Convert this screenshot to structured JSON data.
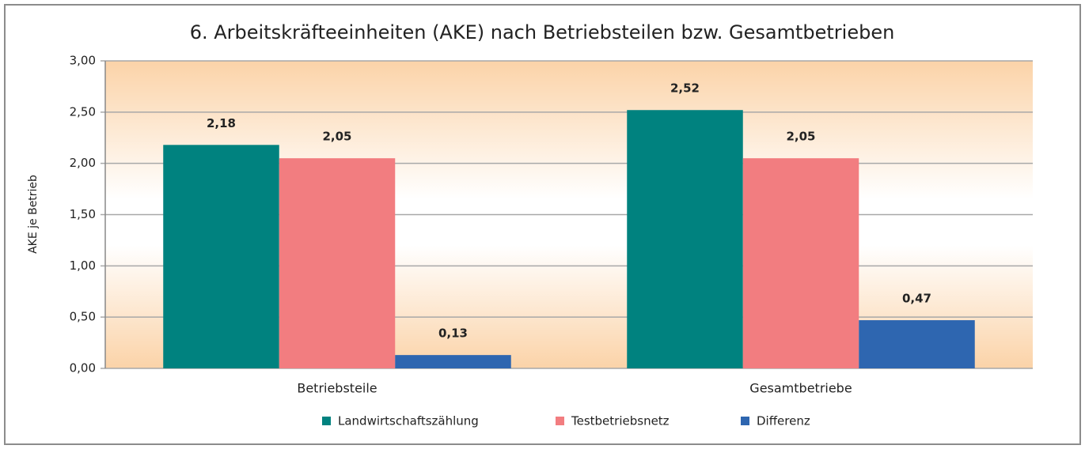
{
  "chart_data": {
    "type": "bar",
    "title": "6. Arbeitskräfteeinheiten (AKE) nach Betriebsteilen bzw. Gesamtbetrieben",
    "y_label": "AKE je Betrieb",
    "categories": [
      "Betriebsteile",
      "Gesamtbetriebe"
    ],
    "series": [
      {
        "name": "Landwirtschaftszählung",
        "color": "#00827f",
        "values": [
          2.18,
          2.52
        ],
        "value_labels": [
          "2,18",
          "2,52"
        ]
      },
      {
        "name": "Testbetriebsnetz",
        "color": "#f27d80",
        "values": [
          2.05,
          2.05
        ],
        "value_labels": [
          "2,05",
          "2,05"
        ]
      },
      {
        "name": "Differenz",
        "color": "#2e66b0",
        "values": [
          0.13,
          0.47
        ],
        "value_labels": [
          "0,13",
          "0,47"
        ]
      }
    ],
    "ylim": [
      0,
      3
    ],
    "yticks": [
      {
        "value": 0,
        "label": "0,00"
      },
      {
        "value": 0.5,
        "label": "0,50"
      },
      {
        "value": 1,
        "label": "1,00"
      },
      {
        "value": 1.5,
        "label": "1,50"
      },
      {
        "value": 2,
        "label": "2,00"
      },
      {
        "value": 2.5,
        "label": "2,50"
      },
      {
        "value": 3,
        "label": "3,00"
      }
    ],
    "grid": true,
    "legend": "bottom"
  }
}
